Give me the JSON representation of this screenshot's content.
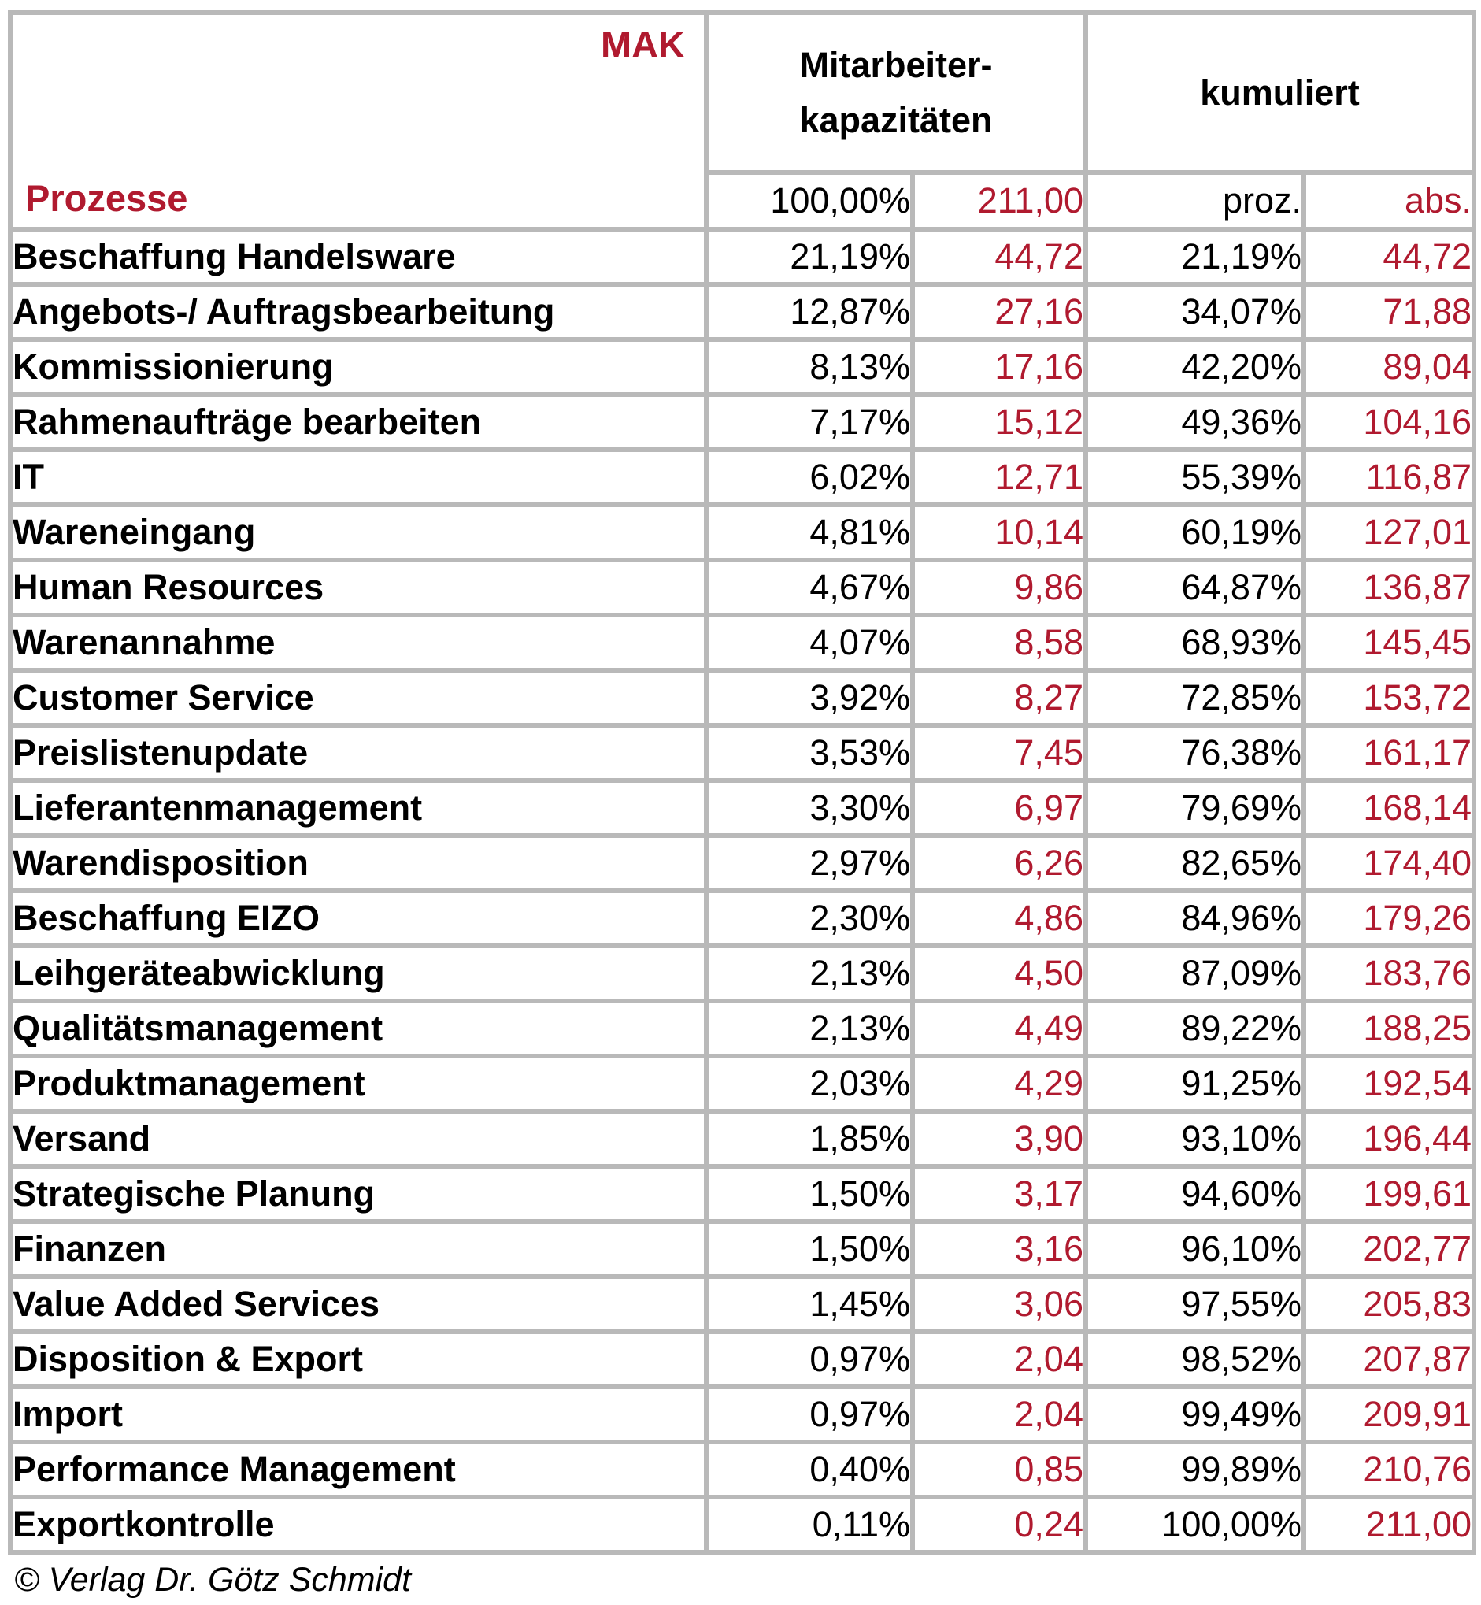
{
  "colors": {
    "accent_red": "#b01a2f",
    "grid_gray": "#b9b9b9",
    "text_black": "#000000"
  },
  "table": {
    "corner_top_label": "MAK",
    "corner_bottom_label": "Prozesse",
    "group_headers": {
      "mitarbeiter_line1": "Mitarbeiter-",
      "mitarbeiter_line2": "kapazitäten",
      "kumuliert": "kumuliert"
    },
    "subheader": {
      "pct_total": "100,00%",
      "abs_total": "211,00",
      "cum_pct_label": "proz.",
      "cum_abs_label": "abs."
    }
  },
  "footer": {
    "copyright": "© Verlag Dr. Götz Schmidt"
  },
  "chart_data": {
    "type": "table",
    "columns": [
      "Prozesse",
      "Mitarbeiterkapazitäten proz.",
      "Mitarbeiterkapazitäten abs. (MAK)",
      "kumuliert proz.",
      "kumuliert abs."
    ],
    "totals": {
      "pct": "100,00%",
      "abs": "211,00"
    },
    "rows": [
      {
        "name": "Beschaffung Handelsware",
        "pct": "21,19%",
        "abs": "44,72",
        "cum_pct": "21,19%",
        "cum_abs": "44,72"
      },
      {
        "name": "Angebots-/ Auftragsbearbeitung",
        "pct": "12,87%",
        "abs": "27,16",
        "cum_pct": "34,07%",
        "cum_abs": "71,88"
      },
      {
        "name": "Kommissionierung",
        "pct": "8,13%",
        "abs": "17,16",
        "cum_pct": "42,20%",
        "cum_abs": "89,04"
      },
      {
        "name": "Rahmenaufträge bearbeiten",
        "pct": "7,17%",
        "abs": "15,12",
        "cum_pct": "49,36%",
        "cum_abs": "104,16"
      },
      {
        "name": "IT",
        "pct": "6,02%",
        "abs": "12,71",
        "cum_pct": "55,39%",
        "cum_abs": "116,87"
      },
      {
        "name": "Wareneingang",
        "pct": "4,81%",
        "abs": "10,14",
        "cum_pct": "60,19%",
        "cum_abs": "127,01"
      },
      {
        "name": "Human Resources",
        "pct": "4,67%",
        "abs": "9,86",
        "cum_pct": "64,87%",
        "cum_abs": "136,87"
      },
      {
        "name": "Warenannahme",
        "pct": "4,07%",
        "abs": "8,58",
        "cum_pct": "68,93%",
        "cum_abs": "145,45"
      },
      {
        "name": "Customer Service",
        "pct": "3,92%",
        "abs": "8,27",
        "cum_pct": "72,85%",
        "cum_abs": "153,72"
      },
      {
        "name": "Preislistenupdate",
        "pct": "3,53%",
        "abs": "7,45",
        "cum_pct": "76,38%",
        "cum_abs": "161,17"
      },
      {
        "name": "Lieferantenmanagement",
        "pct": "3,30%",
        "abs": "6,97",
        "cum_pct": "79,69%",
        "cum_abs": "168,14"
      },
      {
        "name": "Warendisposition",
        "pct": "2,97%",
        "abs": "6,26",
        "cum_pct": "82,65%",
        "cum_abs": "174,40"
      },
      {
        "name": "Beschaffung EIZO",
        "pct": "2,30%",
        "abs": "4,86",
        "cum_pct": "84,96%",
        "cum_abs": "179,26"
      },
      {
        "name": "Leihgeräteabwicklung",
        "pct": "2,13%",
        "abs": "4,50",
        "cum_pct": "87,09%",
        "cum_abs": "183,76"
      },
      {
        "name": "Qualitätsmanagement",
        "pct": "2,13%",
        "abs": "4,49",
        "cum_pct": "89,22%",
        "cum_abs": "188,25"
      },
      {
        "name": "Produktmanagement",
        "pct": "2,03%",
        "abs": "4,29",
        "cum_pct": "91,25%",
        "cum_abs": "192,54"
      },
      {
        "name": "Versand",
        "pct": "1,85%",
        "abs": "3,90",
        "cum_pct": "93,10%",
        "cum_abs": "196,44"
      },
      {
        "name": "Strategische Planung",
        "pct": "1,50%",
        "abs": "3,17",
        "cum_pct": "94,60%",
        "cum_abs": "199,61"
      },
      {
        "name": "Finanzen",
        "pct": "1,50%",
        "abs": "3,16",
        "cum_pct": "96,10%",
        "cum_abs": "202,77"
      },
      {
        "name": "Value Added Services",
        "pct": "1,45%",
        "abs": "3,06",
        "cum_pct": "97,55%",
        "cum_abs": "205,83"
      },
      {
        "name": "Disposition & Export",
        "pct": "0,97%",
        "abs": "2,04",
        "cum_pct": "98,52%",
        "cum_abs": "207,87"
      },
      {
        "name": "Import",
        "pct": "0,97%",
        "abs": "2,04",
        "cum_pct": "99,49%",
        "cum_abs": "209,91"
      },
      {
        "name": "Performance Management",
        "pct": "0,40%",
        "abs": "0,85",
        "cum_pct": "99,89%",
        "cum_abs": "210,76"
      },
      {
        "name": "Exportkontrolle",
        "pct": "0,11%",
        "abs": "0,24",
        "cum_pct": "100,00%",
        "cum_abs": "211,00"
      }
    ]
  }
}
